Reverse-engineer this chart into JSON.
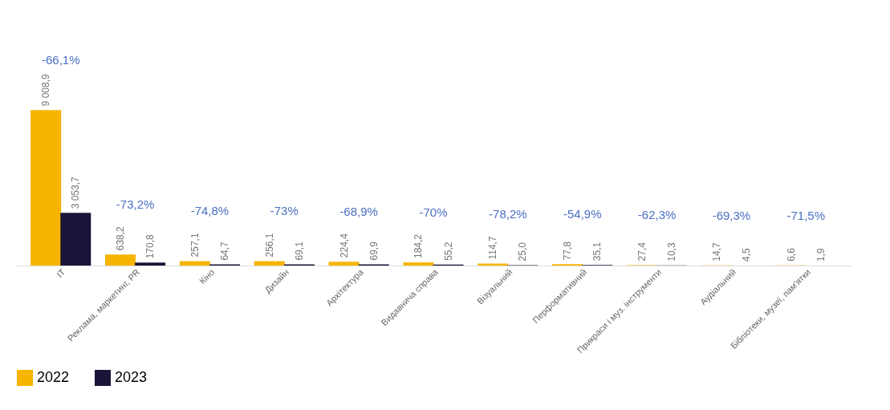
{
  "chart_data": {
    "type": "bar",
    "categories": [
      "IT",
      "Реклама, маркетинг, PR",
      "Кіно",
      "Дизайн",
      "Архітектура",
      "Видавнича справа",
      "Візуальний",
      "Перформативний",
      "Прикраси і муз. інструменти",
      "Аудіальний",
      "Бібліотеки, музеї, пам'ятки"
    ],
    "series": [
      {
        "name": "2022",
        "color": "#f7b500",
        "values": [
          9008.9,
          638.2,
          257.1,
          256.1,
          224.4,
          184.2,
          114.7,
          77.8,
          27.4,
          14.7,
          6.6
        ],
        "value_labels": [
          "9 008,9",
          "638,2",
          "257,1",
          "256,1",
          "224,4",
          "184,2",
          "114,7",
          "77,8",
          "27,4",
          "14,7",
          "6,6"
        ]
      },
      {
        "name": "2023",
        "color": "#1a1538",
        "values": [
          3053.7,
          170.8,
          64.7,
          69.1,
          69.9,
          55.2,
          25.0,
          35.1,
          10.3,
          4.5,
          1.9
        ],
        "value_labels": [
          "3 053,7",
          "170,8",
          "64,7",
          "69,1",
          "69,9",
          "55,2",
          "25,0",
          "35,1",
          "10,3",
          "4,5",
          "1,9"
        ]
      }
    ],
    "annotations": [
      "-66,1%",
      "-73,2%",
      "-74,8%",
      "-73%",
      "-68,9%",
      "-70%",
      "-78,2%",
      "-54,9%",
      "-62,3%",
      "-69,3%",
      "-71,5%"
    ],
    "legend": "bottom",
    "grid": false
  }
}
